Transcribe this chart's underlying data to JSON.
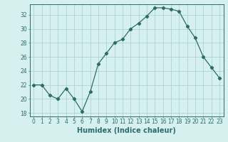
{
  "x": [
    0,
    1,
    2,
    3,
    4,
    5,
    6,
    7,
    8,
    9,
    10,
    11,
    12,
    13,
    14,
    15,
    16,
    17,
    18,
    19,
    20,
    21,
    22,
    23
  ],
  "y": [
    22,
    22,
    20.5,
    20,
    21.5,
    20,
    18.2,
    21,
    25,
    26.5,
    28,
    28.5,
    30,
    30.8,
    31.8,
    33,
    33,
    32.8,
    32.5,
    30.4,
    28.7,
    26,
    24.5,
    23
  ],
  "line_color": "#2e6b6b",
  "marker": "D",
  "marker_size": 2.2,
  "bg_color": "#d6f0f0",
  "grid_color": "#aed4d4",
  "xlabel": "Humidex (Indice chaleur)",
  "ylabel": "",
  "xlim": [
    -0.5,
    23.5
  ],
  "ylim": [
    17.5,
    33.5
  ],
  "yticks": [
    18,
    20,
    22,
    24,
    26,
    28,
    30,
    32
  ],
  "xticks": [
    0,
    1,
    2,
    3,
    4,
    5,
    6,
    7,
    8,
    9,
    10,
    11,
    12,
    13,
    14,
    15,
    16,
    17,
    18,
    19,
    20,
    21,
    22,
    23
  ],
  "tick_label_fontsize": 5.5,
  "xlabel_fontsize": 7.0,
  "axis_color": "#2e6b6b"
}
